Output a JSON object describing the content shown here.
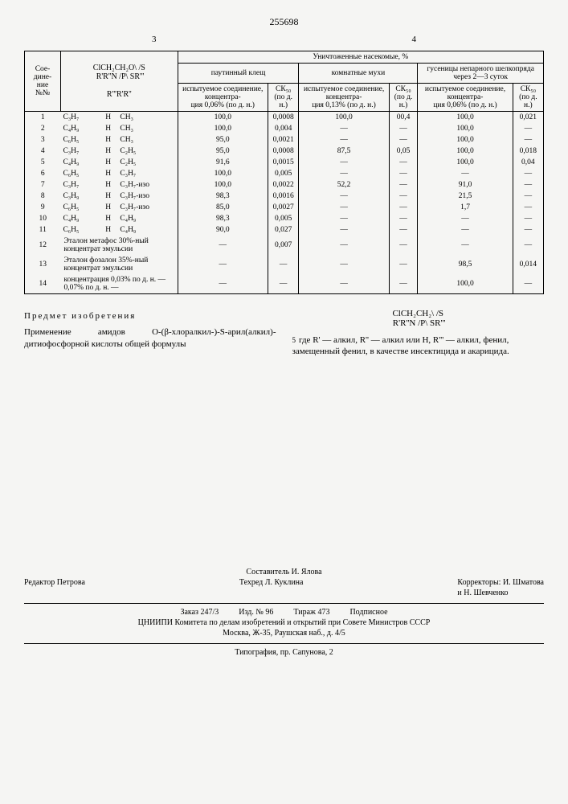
{
  "patent_number": "255698",
  "page_left": "3",
  "page_right": "4",
  "table": {
    "group_header": "Уничтоженные насекомые, %",
    "col_compound": "Сое-\nдине-\nние\n№№",
    "col_formula": "ClCH₂CH₂O\\ /S\n R'R''N /P\\ SR'''\n\nR'''R'R''",
    "col_mite": "паутинный клещ",
    "col_fly": "комнатные мухи",
    "col_silkworm": "гусеницы непарного шелкопряда через 2—3 суток",
    "sub_tested": "испытуемое соединение, концентра-\nция 0,06% (по д. н.)",
    "sub_tested_fly": "испытуемое соединение, концентра-\nция 0,13% (по д. н.)",
    "sub_sk50": "СК₅₀\n(по д. н.)",
    "rows": [
      {
        "n": "1",
        "r1": "C₃H₇",
        "r2": "H",
        "r3": "CH₃",
        "m1": "100,0",
        "m2": "0,0008",
        "f1": "100,0",
        "f2": "00,4",
        "s1": "100,0",
        "s2": "0,021"
      },
      {
        "n": "2",
        "r1": "C₄H₉",
        "r2": "H",
        "r3": "CH₃",
        "m1": "100,0",
        "m2": "0,004",
        "f1": "—",
        "f2": "—",
        "s1": "100,0",
        "s2": "—"
      },
      {
        "n": "3",
        "r1": "C₆H₅",
        "r2": "H",
        "r3": "CH₃",
        "m1": "95,0",
        "m2": "0,0021",
        "f1": "—",
        "f2": "—",
        "s1": "100,0",
        "s2": "—"
      },
      {
        "n": "4",
        "r1": "C₃H₇",
        "r2": "H",
        "r3": "C₂H₅",
        "m1": "95,0",
        "m2": "0,0008",
        "f1": "87,5",
        "f2": "0,05",
        "s1": "100,0",
        "s2": "0,018"
      },
      {
        "n": "5",
        "r1": "C₄H₉",
        "r2": "H",
        "r3": "C₂H₅",
        "m1": "91,6",
        "m2": "0,0015",
        "f1": "—",
        "f2": "—",
        "s1": "100,0",
        "s2": "0,04"
      },
      {
        "n": "6",
        "r1": "C₆H₅",
        "r2": "H",
        "r3": "C₃H₇",
        "m1": "100,0",
        "m2": "0,005",
        "f1": "—",
        "f2": "—",
        "s1": "—",
        "s2": "—"
      },
      {
        "n": "7",
        "r1": "C₃H₇",
        "r2": "H",
        "r3": "C₃H₇-изо",
        "m1": "100,0",
        "m2": "0,0022",
        "f1": "52,2",
        "f2": "—",
        "s1": "91,0",
        "s2": "—"
      },
      {
        "n": "8",
        "r1": "C₃H₉",
        "r2": "H",
        "r3": "C₃H₇-изо",
        "m1": "98,3",
        "m2": "0,0016",
        "f1": "—",
        "f2": "—",
        "s1": "21,5",
        "s2": "—"
      },
      {
        "n": "9",
        "r1": "C₆H₅",
        "r2": "H",
        "r3": "C₃H₇-изо",
        "m1": "85,0",
        "m2": "0,0027",
        "f1": "—",
        "f2": "—",
        "s1": "1,7",
        "s2": "—"
      },
      {
        "n": "10",
        "r1": "C₄H₉",
        "r2": "H",
        "r3": "C₄H₉",
        "m1": "98,3",
        "m2": "0,005",
        "f1": "—",
        "f2": "—",
        "s1": "—",
        "s2": "—"
      },
      {
        "n": "11",
        "r1": "C₆H₅",
        "r2": "H",
        "r3": "C₄H₉",
        "m1": "90,0",
        "m2": "0,027",
        "f1": "—",
        "f2": "—",
        "s1": "—",
        "s2": "—"
      },
      {
        "n": "12",
        "span": "Эталон метафос 30%-ный концентрат эмульсии",
        "m1": "—",
        "m2": "0,007",
        "f1": "—",
        "f2": "—",
        "s1": "—",
        "s2": "—"
      },
      {
        "n": "13",
        "span": "Эталон фозалон 35%-ный концентрат эмульсии",
        "m1": "—",
        "m2": "—",
        "f1": "—",
        "f2": "—",
        "s1": "98,5",
        "s2": "0,014"
      },
      {
        "n": "14",
        "span": "концентрация 0,03% по д. н. —\n                     0,07% по д. н. —",
        "m1": "—",
        "m2": "—",
        "f1": "—",
        "f2": "—",
        "s1": "100,0",
        "s2": "—"
      }
    ]
  },
  "claim_title": "Предмет изобретения",
  "claim_left": "Применение амидов O-(β-хлоралкил-)-S-арил(алкил)-дитиофосфорной кислоты общей формулы",
  "claim_formula": "ClCH₂CH₂\\ /S\n R'R''N /P\\ SR'''",
  "claim_right": "где R' — алкил, R'' — алкил или H, R''' — алкил, фенил, замещенный фенил, в качестве инсектицида и акарицида.",
  "line_num": "5",
  "footer": {
    "compiler": "Составитель И. Ялова",
    "editor": "Редактор Петрова",
    "techred": "Техред Л. Куклина",
    "proof": "Корректоры: И. Шматова\nи Н. Шевченко",
    "order": "Заказ 247/3          Изд. № 96          Тираж 473          Подписное",
    "org": "ЦНИИПИ Комитета по делам изобретений и открытий при Совете Министров СССР\nМосква, Ж-35, Раушская наб., д. 4/5",
    "print": "Типография, пр. Сапунова, 2"
  }
}
